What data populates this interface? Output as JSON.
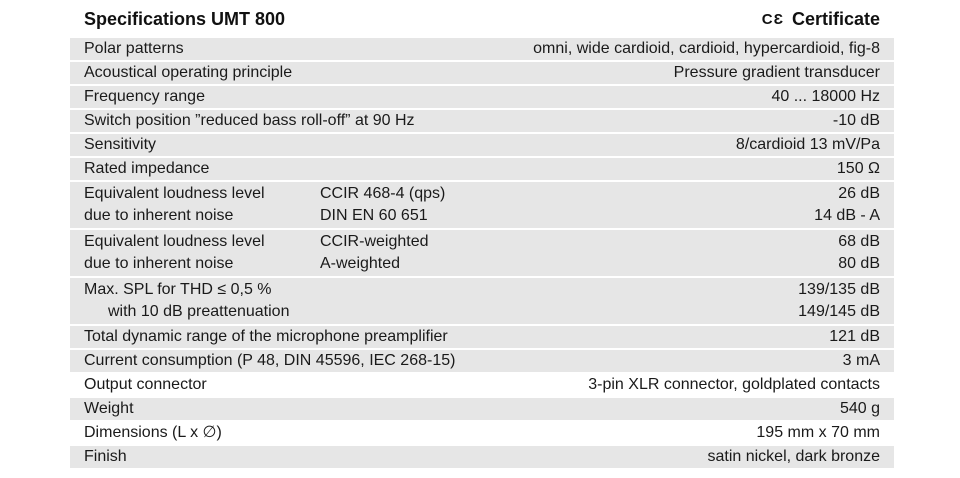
{
  "header": {
    "title": "Specifications UMT 800",
    "ce_mark": "CƐ",
    "certificate": "Certificate"
  },
  "rows": {
    "polar": {
      "label": "Polar patterns",
      "value": "omni, wide cardioid, cardioid, hypercardioid, fig-8"
    },
    "principle": {
      "label": "Acoustical operating principle",
      "value": "Pressure gradient transducer"
    },
    "freq": {
      "label": "Frequency range",
      "value": "40 ... 18000 Hz"
    },
    "switch": {
      "label": "Switch position ”reduced bass roll-off” at 90 Hz",
      "value": "-10 dB"
    },
    "sensitivity": {
      "label": "Sensitivity",
      "value": "8/cardioid 13 mV/Pa"
    },
    "impedance": {
      "label": "Rated impedance",
      "value": "150 Ω"
    },
    "noise1": {
      "line1_label": "Equivalent loudness level",
      "line1_std": "CCIR  468-4 (qps)",
      "line1_value": "26 dB",
      "line2_label": "due to inherent noise",
      "line2_std": "DIN EN 60 651",
      "line2_value": "14 dB - A"
    },
    "noise2": {
      "line1_label": "Equivalent loudness level",
      "line1_std": "CCIR-weighted",
      "line1_value": "68 dB",
      "line2_label": "due to inherent noise",
      "line2_std": "A-weighted",
      "line2_value": "80 dB"
    },
    "spl": {
      "line1_label": "Max. SPL for THD ≤ 0,5 %",
      "line1_value": "139/135 dB",
      "line2_label": "with 10 dB preattenuation",
      "line2_value": "149/145 dB"
    },
    "dynamic": {
      "label": "Total dynamic range of the microphone preamplifier",
      "value": "121 dB"
    },
    "current": {
      "label": "Current consumption (P 48, DIN 45596, IEC 268-15)",
      "value": "3 mA"
    },
    "connector": {
      "label": "Output connector",
      "value": "3-pin XLR connector, goldplated contacts"
    },
    "weight": {
      "label": "Weight",
      "value": "540 g"
    },
    "dimensions": {
      "label": "Dimensions (L x ∅)",
      "value": "195 mm x 70 mm"
    },
    "finish": {
      "label": "Finish",
      "value": "satin nickel, dark bronze"
    }
  }
}
